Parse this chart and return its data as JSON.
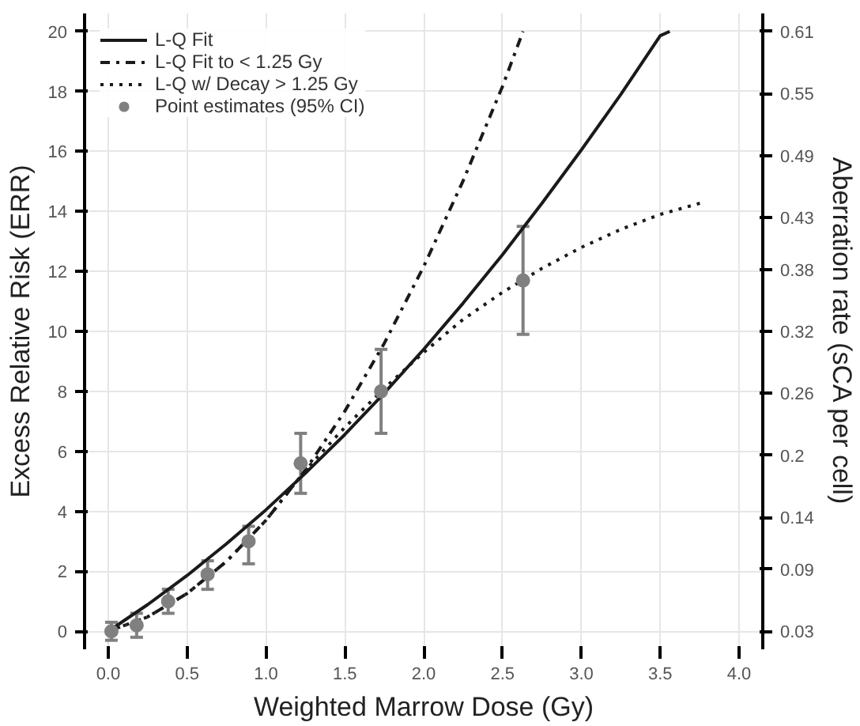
{
  "chart_data": {
    "type": "line",
    "xlabel": "Weighted Marrow Dose (Gy)",
    "ylabel": "Excess Relative Risk (ERR)",
    "y2label": "Aberration rate (sCA per cell)",
    "xlim": [
      -0.15,
      4.15
    ],
    "ylim": [
      -0.6,
      20.6
    ],
    "y2lim": [
      0.0126,
      0.6274
    ],
    "xticks": [
      {
        "value": 0,
        "label": "0.0"
      },
      {
        "value": 0.5,
        "label": "0.5"
      },
      {
        "value": 1,
        "label": "1.0"
      },
      {
        "value": 1.5,
        "label": "1.5"
      },
      {
        "value": 2,
        "label": "2.0"
      },
      {
        "value": 2.5,
        "label": "2.5"
      },
      {
        "value": 3,
        "label": "3.0"
      },
      {
        "value": 3.5,
        "label": "3.5"
      },
      {
        "value": 4,
        "label": "4.0"
      }
    ],
    "yticks": [
      0,
      2,
      4,
      6,
      8,
      10,
      12,
      14,
      16,
      18,
      20
    ],
    "y2ticks": [
      0.03,
      0.09,
      0.14,
      0.2,
      0.26,
      0.32,
      0.38,
      0.43,
      0.49,
      0.55,
      0.61
    ],
    "grid": true,
    "legend": "top left",
    "series": [
      {
        "name": "L-Q Fit",
        "line_style": "solid",
        "color": "#1a1a1a",
        "x": [
          0,
          0.25,
          0.5,
          0.75,
          1.0,
          1.25,
          1.5,
          1.75,
          2.0,
          2.25,
          2.5,
          2.75,
          3.0,
          3.25,
          3.5,
          3.56
        ],
        "values": [
          0,
          0.89,
          1.86,
          2.92,
          4.05,
          5.27,
          6.56,
          7.94,
          9.4,
          10.94,
          12.56,
          14.27,
          16.05,
          17.9,
          19.86,
          20
        ]
      },
      {
        "name": "L-Q Fit to < 1.25 Gy",
        "line_style": "dashdot",
        "color": "#1a1a1a",
        "x": [
          0,
          0.25,
          0.5,
          0.75,
          1.0,
          1.25,
          1.5,
          1.75,
          2.0,
          2.25,
          2.5,
          2.63
        ],
        "values": [
          0,
          0.48,
          1.26,
          2.33,
          3.7,
          5.37,
          7.34,
          9.6,
          12.16,
          15.02,
          18.17,
          20
        ]
      },
      {
        "name": "L-Q w/ Decay > 1.25 Gy",
        "line_style": "dotted",
        "color": "#1a1a1a",
        "x": [
          0,
          0.25,
          0.5,
          0.75,
          1.0,
          1.25,
          1.5,
          1.75,
          2.0,
          2.25,
          2.5,
          2.75,
          3.0,
          3.25,
          3.5,
          3.77
        ],
        "values": [
          0,
          0.48,
          1.26,
          2.33,
          3.7,
          5.37,
          6.8,
          8.1,
          9.3,
          10.4,
          11.3,
          12.1,
          12.8,
          13.4,
          13.9,
          14.3
        ]
      },
      {
        "name": "Point estimates (95% CI)",
        "type": "scatter",
        "marker": "circle",
        "color": "#808080",
        "x": [
          0.02,
          0.18,
          0.38,
          0.63,
          0.89,
          1.22,
          1.73,
          2.63
        ],
        "values": [
          0,
          0.2,
          1.0,
          1.9,
          3.0,
          5.6,
          8.0,
          11.7
        ],
        "errors": [
          [
            -0.3,
            0.3
          ],
          [
            -0.2,
            0.6
          ],
          [
            0.6,
            1.4
          ],
          [
            1.4,
            2.35
          ],
          [
            2.25,
            3.5
          ],
          [
            4.6,
            6.6
          ],
          [
            6.6,
            9.4
          ],
          [
            9.9,
            13.5
          ]
        ]
      }
    ]
  }
}
